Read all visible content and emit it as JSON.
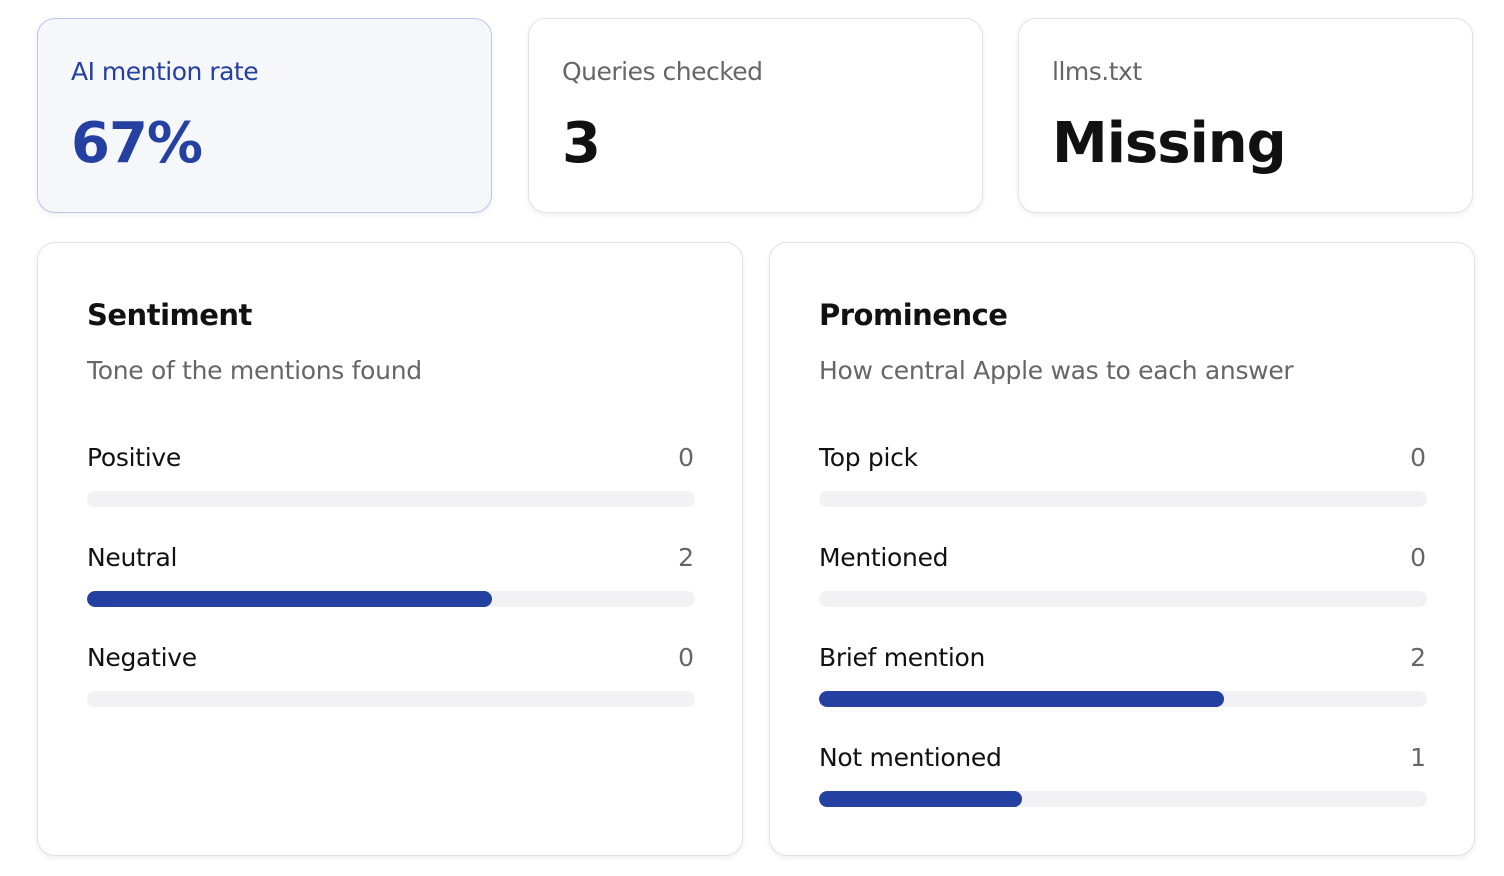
{
  "cards": [
    {
      "label": "AI mention rate",
      "value": "67%"
    },
    {
      "label": "Queries checked",
      "value": 3
    },
    {
      "label": "llms.txt",
      "value": "Missing"
    }
  ],
  "panels": [
    {
      "title": "Sentiment",
      "subtitle": "Tone of the mentions found",
      "rows": [
        {
          "label": "Positive",
          "value": 0
        },
        {
          "label": "Neutral",
          "value": 2
        },
        {
          "label": "Negative",
          "value": 0
        }
      ]
    },
    {
      "title": "Prominence",
      "subtitle": "How central Apple was to each answer",
      "rows": [
        {
          "label": "Top pick",
          "value": 0
        },
        {
          "label": "Mentioned",
          "value": 0
        },
        {
          "label": "Brief mention",
          "value": 2
        },
        {
          "label": "Not mentioned",
          "value": 1
        }
      ]
    }
  ]
}
